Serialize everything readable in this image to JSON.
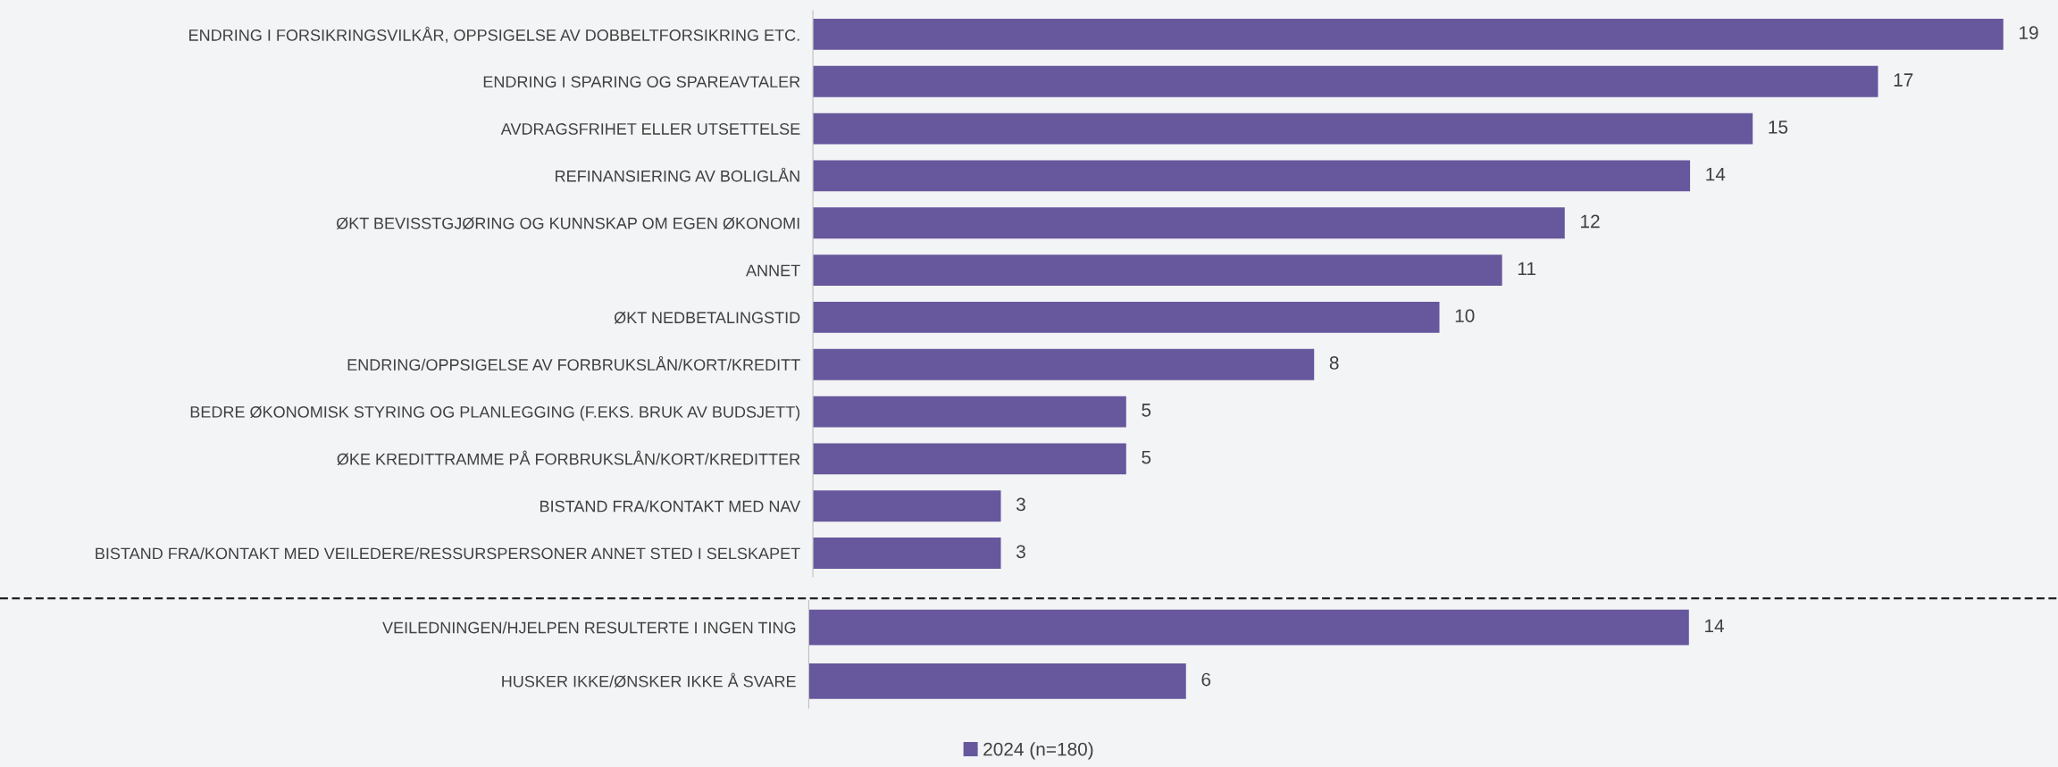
{
  "chart_data": [
    {
      "type": "bar",
      "orientation": "horizontal",
      "categories": [
        "ENDRING I FORSIKRINGSVILKÅR, OPPSIGELSE AV DOBBELTFORSIKRING ETC.",
        "ENDRING I SPARING OG SPAREAVTALER",
        "AVDRAGSFRIHET ELLER UTSETTELSE",
        "REFINANSIERING AV BOLIGLÅN",
        "ØKT BEVISSTGJØRING OG KUNNSKAP OM EGEN ØKONOMI",
        "ANNET",
        "ØKT NEDBETALINGSTID",
        "ENDRING/OPPSIGELSE AV FORBRUKSLÅN/KORT/KREDITT",
        "BEDRE ØKONOMISK STYRING OG PLANLEGGING (F.EKS. BRUK AV BUDSJETT)",
        "ØKE KREDITTRAMME PÅ FORBRUKSLÅN/KORT/KREDITTER",
        "BISTAND FRA/KONTAKT MED NAV",
        "BISTAND FRA/KONTAKT MED VEILEDERE/RESSURSPERSONER ANNET STED I SELSKAPET"
      ],
      "series": [
        {
          "color": "#67579c",
          "values": [
            19,
            17,
            15,
            14,
            12,
            11,
            10,
            8,
            5,
            5,
            3,
            3
          ]
        }
      ],
      "data_labels": true,
      "tick_labels": "y"
    },
    {
      "type": "bar",
      "orientation": "horizontal",
      "categories": [
        "VEILEDNINGEN/HJELPEN RESULTERTE I INGEN TING",
        "HUSKER IKKE/ØNSKER IKKE Å SVARE"
      ],
      "series": [
        {
          "name": "2024 (n=180)",
          "color": "#67579c",
          "values": [
            14,
            6
          ]
        }
      ],
      "data_labels": true,
      "tick_labels": "y",
      "legend": "bottom"
    }
  ]
}
